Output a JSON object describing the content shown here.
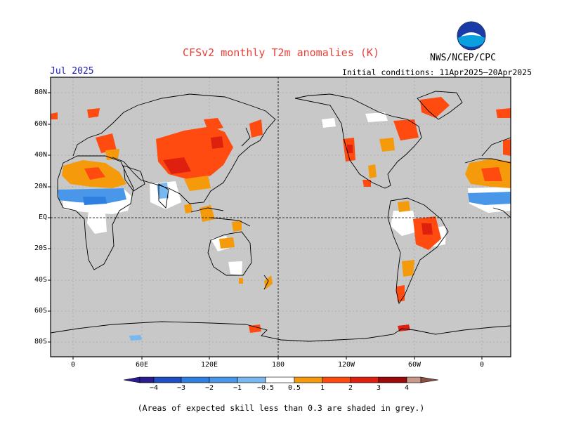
{
  "title": "CFSv2 monthly T2m anomalies (K)",
  "agency": "NWS/NCEP/CPC",
  "logo_text": "NOAA",
  "month_label": "Jul 2025",
  "initial_conditions": "Initial conditions: 11Apr2025–20Apr2025",
  "footnote": "(Areas of expected skill less than 0.3 are shaded in grey.)",
  "lat_labels": [
    "80N",
    "60N",
    "40N",
    "20N",
    "EQ",
    "20S",
    "40S",
    "60S",
    "80S"
  ],
  "lon_labels": [
    "0",
    "60E",
    "120E",
    "180",
    "120W",
    "60W",
    "0"
  ],
  "colorbar": {
    "labels": [
      "−4",
      "−3",
      "−2",
      "−1",
      "−0.5",
      "0.5",
      "1",
      "2",
      "3",
      "4"
    ],
    "colors": [
      "#2b1d8f",
      "#1f4fc4",
      "#2f7fe0",
      "#4a97ea",
      "#78b8f0",
      "#ffffff",
      "#f59a0a",
      "#ff4a10",
      "#e0200e",
      "#9c0a0a",
      "#c89a8a",
      "#8a5040"
    ]
  },
  "colors": {
    "grey_mask": "#c8c8c8",
    "title_red": "#e8403a",
    "month_blue": "#2020c0"
  }
}
